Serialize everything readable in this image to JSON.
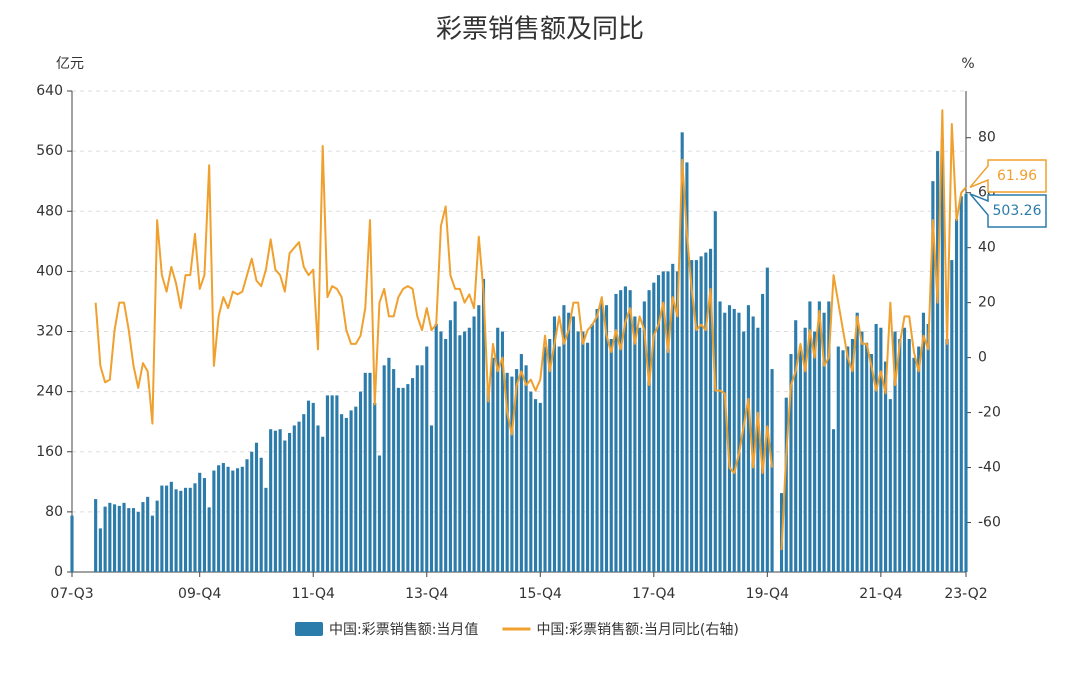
{
  "chart_data": {
    "type": "bar",
    "title": "彩票销售额及同比",
    "y_label": "亿元",
    "y2_label": "%",
    "categories": [
      "07-Q3",
      null,
      null,
      null,
      null,
      null,
      null,
      null,
      null,
      null,
      null,
      null,
      null,
      null,
      null,
      null,
      null,
      null,
      null,
      null,
      null,
      null,
      null,
      null,
      null,
      null,
      null,
      "09-Q4",
      null,
      null,
      null,
      null,
      null,
      null,
      null,
      null,
      null,
      null,
      null,
      null,
      null,
      null,
      null,
      null,
      null,
      null,
      null,
      null,
      null,
      null,
      null,
      "11-Q4",
      null,
      null,
      null,
      null,
      null,
      null,
      null,
      null,
      null,
      null,
      null,
      null,
      null,
      null,
      null,
      null,
      null,
      null,
      null,
      null,
      null,
      null,
      null,
      "13-Q4",
      null,
      null,
      null,
      null,
      null,
      null,
      null,
      null,
      null,
      null,
      null,
      null,
      null,
      null,
      null,
      null,
      null,
      null,
      null,
      null,
      null,
      null,
      null,
      "15-Q4",
      null,
      null,
      null,
      null,
      null,
      null,
      null,
      null,
      null,
      null,
      null,
      null,
      null,
      null,
      null,
      null,
      null,
      null,
      null,
      null,
      null,
      null,
      null,
      "17-Q4",
      null,
      null,
      null,
      null,
      null,
      null,
      null,
      null,
      null,
      null,
      null,
      null,
      null,
      null,
      null,
      null,
      null,
      null,
      null,
      null,
      null,
      null,
      null,
      "19-Q4",
      null,
      null,
      null,
      null,
      null,
      null,
      null,
      null,
      null,
      null,
      null,
      null,
      null,
      null,
      null,
      null,
      null,
      null,
      null,
      null,
      null,
      null,
      null,
      "21-Q4",
      null,
      null,
      null,
      null,
      null,
      null,
      null,
      null,
      null,
      null,
      null,
      null,
      null,
      null,
      null,
      null,
      null,
      "23-Q2"
    ],
    "series": [
      {
        "name": "中国:彩票销售额:当月值",
        "type": "bar",
        "color": "#2b7bab",
        "axis": "y",
        "values": [
          75,
          null,
          null,
          null,
          null,
          97,
          58,
          87,
          92,
          90,
          88,
          92,
          85,
          85,
          80,
          93,
          100,
          75,
          95,
          115,
          115,
          120,
          110,
          108,
          112,
          112,
          118,
          132,
          125,
          86,
          135,
          142,
          145,
          140,
          135,
          138,
          140,
          150,
          160,
          172,
          152,
          112,
          190,
          188,
          190,
          175,
          185,
          195,
          200,
          210,
          228,
          225,
          195,
          180,
          235,
          235,
          235,
          210,
          205,
          215,
          220,
          240,
          265,
          265,
          225,
          155,
          275,
          285,
          270,
          245,
          245,
          250,
          258,
          275,
          275,
          300,
          195,
          330,
          320,
          310,
          335,
          360,
          315,
          320,
          325,
          340,
          355,
          390,
          245,
          285,
          325,
          320,
          265,
          260,
          270,
          290,
          275,
          240,
          230,
          225,
          300,
          310,
          340,
          300,
          355,
          345,
          340,
          320,
          320,
          305,
          330,
          350,
          360,
          355,
          310,
          370,
          375,
          380,
          375,
          340,
          325,
          360,
          375,
          385,
          395,
          400,
          400,
          410,
          400,
          585,
          545,
          415,
          415,
          420,
          425,
          430,
          480,
          360,
          345,
          355,
          350,
          345,
          320,
          355,
          340,
          325,
          370,
          405,
          270,
          null,
          105,
          232,
          290,
          335,
          300,
          325,
          360,
          320,
          360,
          345,
          360,
          190,
          300,
          295,
          300,
          310,
          345,
          320,
          305,
          290,
          330,
          325,
          280,
          230,
          320,
          310,
          325,
          310,
          285,
          300,
          345,
          330,
          520,
          560,
          575,
          310,
          415,
          470,
          500,
          503.26
        ]
      },
      {
        "name": "中国:彩票销售额:当月同比(右轴)",
        "type": "line",
        "color": "#f0a02e",
        "axis": "y2",
        "values": [
          null,
          null,
          null,
          null,
          null,
          20,
          -3,
          -9,
          -8,
          10,
          20,
          20,
          10,
          -3,
          -11,
          -2,
          -5,
          -24,
          50,
          30,
          24,
          33,
          27,
          18,
          30,
          30,
          45,
          25,
          30,
          70,
          -3,
          15,
          22,
          18,
          24,
          23,
          24,
          30,
          36,
          28,
          26,
          32,
          43,
          32,
          30,
          24,
          38,
          40,
          42,
          33,
          30,
          32,
          3,
          77,
          22,
          26,
          25,
          22,
          10,
          5,
          5,
          8,
          18,
          50,
          -17,
          20,
          25,
          15,
          15,
          22,
          25,
          26,
          25,
          15,
          10,
          18,
          10,
          12,
          48,
          55,
          30,
          25,
          25,
          20,
          23,
          18,
          44,
          24,
          -16,
          5,
          -5,
          0,
          -20,
          -28,
          -10,
          -5,
          -10,
          -8,
          -12,
          -8,
          8,
          -5,
          5,
          15,
          5,
          10,
          20,
          20,
          5,
          10,
          12,
          15,
          22,
          8,
          2,
          10,
          3,
          13,
          18,
          5,
          15,
          10,
          -10,
          8,
          12,
          20,
          2,
          22,
          15,
          72,
          45,
          25,
          10,
          12,
          10,
          25,
          -12,
          -12,
          -13,
          -40,
          -42,
          -35,
          -25,
          -15,
          -40,
          -20,
          -42,
          -25,
          -40,
          null,
          -70,
          -35,
          -10,
          -5,
          5,
          -5,
          10,
          0,
          17,
          -3,
          0,
          30,
          20,
          10,
          0,
          -5,
          15,
          5,
          5,
          -3,
          -12,
          -5,
          -13,
          20,
          -10,
          5,
          15,
          15,
          2,
          -5,
          8,
          3,
          50,
          20,
          90,
          5,
          85,
          50,
          60,
          61.96
        ]
      }
    ],
    "ylim": [
      0,
      640
    ],
    "yticks": [
      0,
      80,
      160,
      240,
      320,
      400,
      480,
      560,
      640
    ],
    "y2lim": [
      -78,
      97
    ],
    "y2ticks": [
      -60,
      -40,
      -20,
      0,
      20,
      40,
      60,
      80
    ],
    "grid": true,
    "legend": "bottom"
  }
}
